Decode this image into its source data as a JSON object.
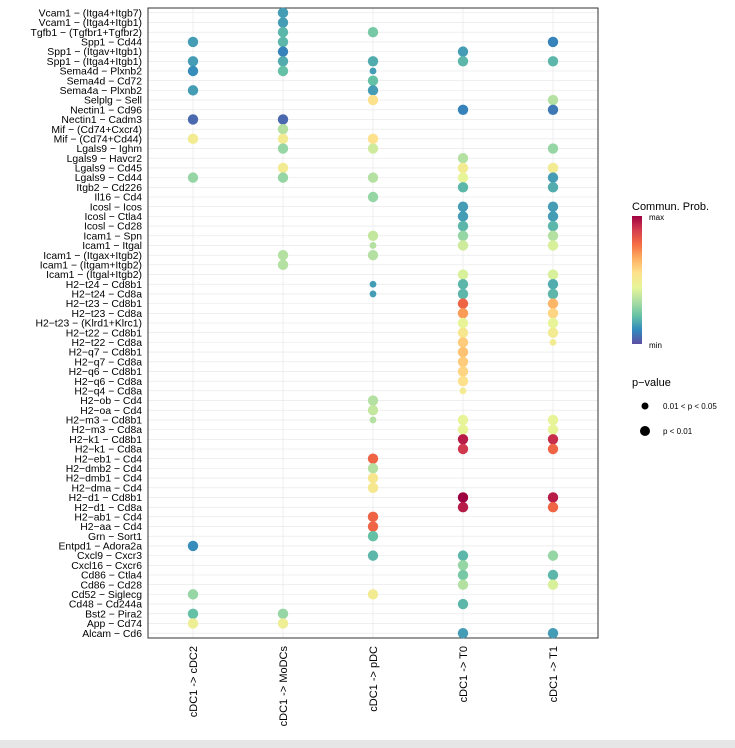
{
  "chart_data": {
    "type": "scatter",
    "x_categories": [
      "cDC1 -> cDC2",
      "cDC1 -> MoDCs",
      "cDC1 -> pDC",
      "cDC1 -> T0",
      "cDC1 -> T1"
    ],
    "y_categories": [
      "Vcam1 − (Itga4+Itgb7)",
      "Vcam1 − (Itga4+Itgb1)",
      "Tgfb1 − (Tgfbr1+Tgfbr2)",
      "Spp1 − Cd44",
      "Spp1 − (Itgav+Itgb1)",
      "Spp1 − (Itga4+Itgb1)",
      "Sema4d − Plxnb2",
      "Sema4d − Cd72",
      "Sema4a − Plxnb2",
      "Selplg − Sell",
      "Nectin1 − Cd96",
      "Nectin1 − Cadm3",
      "Mif − (Cd74+Cxcr4)",
      "Mif − (Cd74+Cd44)",
      "Lgals9 − Ighm",
      "Lgals9 − Havcr2",
      "Lgals9 − Cd45",
      "Lgals9 − Cd44",
      "Itgb2 − Cd226",
      "Il16 − Cd4",
      "Icosl − Icos",
      "Icosl − Ctla4",
      "Icosl − Cd28",
      "Icam1 − Spn",
      "Icam1 − Itgal",
      "Icam1 − (Itgax+Itgb2)",
      "Icam1 − (Itgam+Itgb2)",
      "Icam1 − (Itgal+Itgb2)",
      "H2−t24 − Cd8b1",
      "H2−t24 − Cd8a",
      "H2−t23 − Cd8b1",
      "H2−t23 − Cd8a",
      "H2−t23 − (Klrd1+Klrc1)",
      "H2−t22 − Cd8b1",
      "H2−t22 − Cd8a",
      "H2−q7 − Cd8b1",
      "H2−q7 − Cd8a",
      "H2−q6 − Cd8b1",
      "H2−q6 − Cd8a",
      "H2−q4 − Cd8a",
      "H2−ob − Cd4",
      "H2−oa − Cd4",
      "H2−m3 − Cd8b1",
      "H2−m3 − Cd8a",
      "H2−k1 − Cd8b1",
      "H2−k1 − Cd8a",
      "H2−eb1 − Cd4",
      "H2−dmb2 − Cd4",
      "H2−dmb1 − Cd4",
      "H2−dma − Cd4",
      "H2−d1 − Cd8b1",
      "H2−d1 − Cd8a",
      "H2−ab1 − Cd4",
      "H2−aa − Cd4",
      "Grn − Sort1",
      "Entpd1 − Adora2a",
      "Cxcl9 − Cxcr3",
      "Cxcl16 − Cxcr6",
      "Cd86 − Ctla4",
      "Cd86 − Cd28",
      "Cd52 − Siglecg",
      "Cd48 − Cd244a",
      "Bst2 − Pira2",
      "App − Cd74",
      "Alcam − Cd6"
    ],
    "points": [
      {
        "x": 1,
        "y": 0,
        "prob": 0.15,
        "p": "<0.01"
      },
      {
        "x": 1,
        "y": 1,
        "prob": 0.15,
        "p": "<0.01"
      },
      {
        "x": 1,
        "y": 2,
        "prob": 0.2,
        "p": "<0.01"
      },
      {
        "x": 1,
        "y": 3,
        "prob": 0.2,
        "p": "<0.01"
      },
      {
        "x": 1,
        "y": 4,
        "prob": 0.1,
        "p": "<0.01"
      },
      {
        "x": 1,
        "y": 5,
        "prob": 0.18,
        "p": "<0.01"
      },
      {
        "x": 1,
        "y": 6,
        "prob": 0.22,
        "p": "<0.01"
      },
      {
        "x": 1,
        "y": 11,
        "prob": 0.05,
        "p": "<0.01"
      },
      {
        "x": 1,
        "y": 12,
        "prob": 0.35,
        "p": "<0.01"
      },
      {
        "x": 1,
        "y": 13,
        "prob": 0.5,
        "p": "<0.01"
      },
      {
        "x": 1,
        "y": 14,
        "prob": 0.3,
        "p": "<0.01"
      },
      {
        "x": 1,
        "y": 16,
        "prob": 0.5,
        "p": "<0.01"
      },
      {
        "x": 1,
        "y": 17,
        "prob": 0.3,
        "p": "<0.01"
      },
      {
        "x": 1,
        "y": 25,
        "prob": 0.35,
        "p": "<0.01"
      },
      {
        "x": 1,
        "y": 26,
        "prob": 0.35,
        "p": "<0.01"
      },
      {
        "x": 1,
        "y": 62,
        "prob": 0.3,
        "p": "<0.01"
      },
      {
        "x": 1,
        "y": 63,
        "prob": 0.48,
        "p": "<0.01"
      },
      {
        "x": 0,
        "y": 3,
        "prob": 0.15,
        "p": "<0.01"
      },
      {
        "x": 0,
        "y": 5,
        "prob": 0.15,
        "p": "<0.01"
      },
      {
        "x": 0,
        "y": 6,
        "prob": 0.12,
        "p": "<0.01"
      },
      {
        "x": 0,
        "y": 8,
        "prob": 0.15,
        "p": "<0.01"
      },
      {
        "x": 0,
        "y": 11,
        "prob": 0.05,
        "p": "<0.01"
      },
      {
        "x": 0,
        "y": 13,
        "prob": 0.5,
        "p": "<0.01"
      },
      {
        "x": 0,
        "y": 17,
        "prob": 0.3,
        "p": "<0.01"
      },
      {
        "x": 0,
        "y": 55,
        "prob": 0.12,
        "p": "<0.01"
      },
      {
        "x": 0,
        "y": 60,
        "prob": 0.3,
        "p": "<0.01"
      },
      {
        "x": 0,
        "y": 62,
        "prob": 0.22,
        "p": "<0.01"
      },
      {
        "x": 0,
        "y": 63,
        "prob": 0.48,
        "p": "<0.01"
      },
      {
        "x": 2,
        "y": 2,
        "prob": 0.25,
        "p": "<0.01"
      },
      {
        "x": 2,
        "y": 5,
        "prob": 0.18,
        "p": "<0.01"
      },
      {
        "x": 2,
        "y": 6,
        "prob": 0.15,
        "p": "0.01-0.05"
      },
      {
        "x": 2,
        "y": 7,
        "prob": 0.22,
        "p": "<0.01"
      },
      {
        "x": 2,
        "y": 8,
        "prob": 0.15,
        "p": "<0.01"
      },
      {
        "x": 2,
        "y": 9,
        "prob": 0.55,
        "p": "<0.01"
      },
      {
        "x": 2,
        "y": 13,
        "prob": 0.55,
        "p": "<0.01"
      },
      {
        "x": 2,
        "y": 14,
        "prob": 0.4,
        "p": "<0.01"
      },
      {
        "x": 2,
        "y": 17,
        "prob": 0.35,
        "p": "<0.01"
      },
      {
        "x": 2,
        "y": 19,
        "prob": 0.3,
        "p": "<0.01"
      },
      {
        "x": 2,
        "y": 23,
        "prob": 0.38,
        "p": "<0.01"
      },
      {
        "x": 2,
        "y": 24,
        "prob": 0.35,
        "p": "0.01-0.05"
      },
      {
        "x": 2,
        "y": 25,
        "prob": 0.35,
        "p": "<0.01"
      },
      {
        "x": 2,
        "y": 28,
        "prob": 0.15,
        "p": "0.01-0.05"
      },
      {
        "x": 2,
        "y": 29,
        "prob": 0.15,
        "p": "0.01-0.05"
      },
      {
        "x": 2,
        "y": 40,
        "prob": 0.35,
        "p": "<0.01"
      },
      {
        "x": 2,
        "y": 41,
        "prob": 0.38,
        "p": "<0.01"
      },
      {
        "x": 2,
        "y": 42,
        "prob": 0.35,
        "p": "0.01-0.05"
      },
      {
        "x": 2,
        "y": 46,
        "prob": 0.8,
        "p": "<0.01"
      },
      {
        "x": 2,
        "y": 47,
        "prob": 0.35,
        "p": "<0.01"
      },
      {
        "x": 2,
        "y": 48,
        "prob": 0.52,
        "p": "<0.01"
      },
      {
        "x": 2,
        "y": 49,
        "prob": 0.52,
        "p": "<0.01"
      },
      {
        "x": 2,
        "y": 52,
        "prob": 0.8,
        "p": "<0.01"
      },
      {
        "x": 2,
        "y": 53,
        "prob": 0.8,
        "p": "<0.01"
      },
      {
        "x": 2,
        "y": 54,
        "prob": 0.22,
        "p": "<0.01"
      },
      {
        "x": 2,
        "y": 56,
        "prob": 0.2,
        "p": "<0.01"
      },
      {
        "x": 2,
        "y": 60,
        "prob": 0.5,
        "p": "<0.01"
      },
      {
        "x": 3,
        "y": 4,
        "prob": 0.15,
        "p": "<0.01"
      },
      {
        "x": 3,
        "y": 5,
        "prob": 0.2,
        "p": "<0.01"
      },
      {
        "x": 3,
        "y": 10,
        "prob": 0.1,
        "p": "<0.01"
      },
      {
        "x": 3,
        "y": 15,
        "prob": 0.35,
        "p": "<0.01"
      },
      {
        "x": 3,
        "y": 16,
        "prob": 0.5,
        "p": "<0.01"
      },
      {
        "x": 3,
        "y": 17,
        "prob": 0.45,
        "p": "<0.01"
      },
      {
        "x": 3,
        "y": 18,
        "prob": 0.2,
        "p": "<0.01"
      },
      {
        "x": 3,
        "y": 20,
        "prob": 0.15,
        "p": "<0.01"
      },
      {
        "x": 3,
        "y": 21,
        "prob": 0.15,
        "p": "<0.01"
      },
      {
        "x": 3,
        "y": 22,
        "prob": 0.2,
        "p": "<0.01"
      },
      {
        "x": 3,
        "y": 23,
        "prob": 0.3,
        "p": "<0.01"
      },
      {
        "x": 3,
        "y": 24,
        "prob": 0.4,
        "p": "<0.01"
      },
      {
        "x": 3,
        "y": 27,
        "prob": 0.42,
        "p": "<0.01"
      },
      {
        "x": 3,
        "y": 28,
        "prob": 0.2,
        "p": "<0.01"
      },
      {
        "x": 3,
        "y": 29,
        "prob": 0.2,
        "p": "<0.01"
      },
      {
        "x": 3,
        "y": 30,
        "prob": 0.8,
        "p": "<0.01"
      },
      {
        "x": 3,
        "y": 31,
        "prob": 0.7,
        "p": "<0.01"
      },
      {
        "x": 3,
        "y": 32,
        "prob": 0.45,
        "p": "<0.01"
      },
      {
        "x": 3,
        "y": 33,
        "prob": 0.52,
        "p": "<0.01"
      },
      {
        "x": 3,
        "y": 34,
        "prob": 0.6,
        "p": "<0.01"
      },
      {
        "x": 3,
        "y": 35,
        "prob": 0.62,
        "p": "<0.01"
      },
      {
        "x": 3,
        "y": 36,
        "prob": 0.6,
        "p": "<0.01"
      },
      {
        "x": 3,
        "y": 37,
        "prob": 0.58,
        "p": "<0.01"
      },
      {
        "x": 3,
        "y": 38,
        "prob": 0.55,
        "p": "<0.01"
      },
      {
        "x": 3,
        "y": 39,
        "prob": 0.5,
        "p": "0.01-0.05"
      },
      {
        "x": 3,
        "y": 42,
        "prob": 0.45,
        "p": "<0.01"
      },
      {
        "x": 3,
        "y": 43,
        "prob": 0.45,
        "p": "<0.01"
      },
      {
        "x": 3,
        "y": 44,
        "prob": 0.95,
        "p": "<0.01"
      },
      {
        "x": 3,
        "y": 45,
        "prob": 0.9,
        "p": "<0.01"
      },
      {
        "x": 3,
        "y": 50,
        "prob": 1.0,
        "p": "<0.01"
      },
      {
        "x": 3,
        "y": 51,
        "prob": 0.95,
        "p": "<0.01"
      },
      {
        "x": 3,
        "y": 56,
        "prob": 0.2,
        "p": "<0.01"
      },
      {
        "x": 3,
        "y": 57,
        "prob": 0.3,
        "p": "<0.01"
      },
      {
        "x": 3,
        "y": 58,
        "prob": 0.25,
        "p": "<0.01"
      },
      {
        "x": 3,
        "y": 59,
        "prob": 0.35,
        "p": "<0.01"
      },
      {
        "x": 3,
        "y": 61,
        "prob": 0.2,
        "p": "<0.01"
      },
      {
        "x": 3,
        "y": 64,
        "prob": 0.15,
        "p": "<0.01"
      },
      {
        "x": 4,
        "y": 3,
        "prob": 0.1,
        "p": "<0.01"
      },
      {
        "x": 4,
        "y": 5,
        "prob": 0.2,
        "p": "<0.01"
      },
      {
        "x": 4,
        "y": 9,
        "prob": 0.35,
        "p": "<0.01"
      },
      {
        "x": 4,
        "y": 10,
        "prob": 0.08,
        "p": "<0.01"
      },
      {
        "x": 4,
        "y": 14,
        "prob": 0.3,
        "p": "<0.01"
      },
      {
        "x": 4,
        "y": 16,
        "prob": 0.5,
        "p": "<0.01"
      },
      {
        "x": 4,
        "y": 17,
        "prob": 0.15,
        "p": "<0.01"
      },
      {
        "x": 4,
        "y": 18,
        "prob": 0.18,
        "p": "<0.01"
      },
      {
        "x": 4,
        "y": 20,
        "prob": 0.15,
        "p": "<0.01"
      },
      {
        "x": 4,
        "y": 21,
        "prob": 0.15,
        "p": "<0.01"
      },
      {
        "x": 4,
        "y": 22,
        "prob": 0.2,
        "p": "<0.01"
      },
      {
        "x": 4,
        "y": 23,
        "prob": 0.35,
        "p": "<0.01"
      },
      {
        "x": 4,
        "y": 24,
        "prob": 0.42,
        "p": "<0.01"
      },
      {
        "x": 4,
        "y": 27,
        "prob": 0.42,
        "p": "<0.01"
      },
      {
        "x": 4,
        "y": 28,
        "prob": 0.18,
        "p": "<0.01"
      },
      {
        "x": 4,
        "y": 29,
        "prob": 0.2,
        "p": "<0.01"
      },
      {
        "x": 4,
        "y": 30,
        "prob": 0.65,
        "p": "<0.01"
      },
      {
        "x": 4,
        "y": 31,
        "prob": 0.58,
        "p": "<0.01"
      },
      {
        "x": 4,
        "y": 32,
        "prob": 0.45,
        "p": "<0.01"
      },
      {
        "x": 4,
        "y": 33,
        "prob": 0.5,
        "p": "<0.01"
      },
      {
        "x": 4,
        "y": 34,
        "prob": 0.5,
        "p": "0.01-0.05"
      },
      {
        "x": 4,
        "y": 42,
        "prob": 0.45,
        "p": "<0.01"
      },
      {
        "x": 4,
        "y": 43,
        "prob": 0.45,
        "p": "<0.01"
      },
      {
        "x": 4,
        "y": 44,
        "prob": 0.92,
        "p": "<0.01"
      },
      {
        "x": 4,
        "y": 45,
        "prob": 0.8,
        "p": "<0.01"
      },
      {
        "x": 4,
        "y": 50,
        "prob": 0.95,
        "p": "<0.01"
      },
      {
        "x": 4,
        "y": 51,
        "prob": 0.8,
        "p": "<0.01"
      },
      {
        "x": 4,
        "y": 56,
        "prob": 0.3,
        "p": "<0.01"
      },
      {
        "x": 4,
        "y": 58,
        "prob": 0.2,
        "p": "<0.01"
      },
      {
        "x": 4,
        "y": 59,
        "prob": 0.42,
        "p": "<0.01"
      },
      {
        "x": 4,
        "y": 64,
        "prob": 0.15,
        "p": "<0.01"
      }
    ],
    "legend_color": {
      "title": "Commun. Prob.",
      "max_label": "max",
      "min_label": "min"
    },
    "legend_size": {
      "title": "p−value",
      "items": [
        "0.01 < p < 0.05",
        "p < 0.01"
      ]
    },
    "palette": [
      "#5E4FA2",
      "#3288BD",
      "#66C2A5",
      "#ABDDA4",
      "#E6F598",
      "#FEE08B",
      "#FDAE61",
      "#F46D43",
      "#D53E4F",
      "#9E0142"
    ],
    "grid": true
  }
}
